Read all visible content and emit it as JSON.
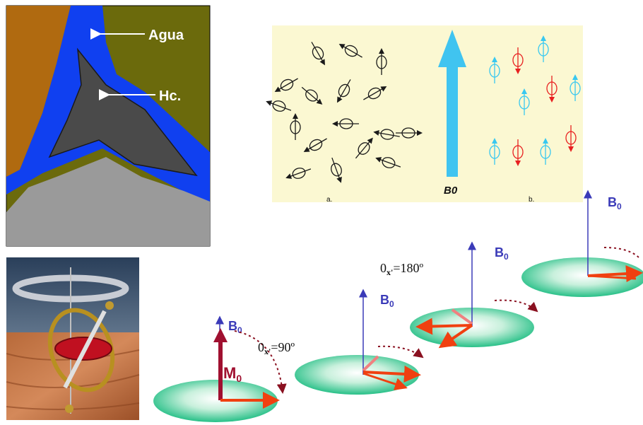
{
  "pore_panel": {
    "water_label": "Agua",
    "hydrocarbon_label": "Hc.",
    "colors": {
      "matrix_left": "#b06a10",
      "matrix_right": "#6b6a0c",
      "water": "#1040f0",
      "hydrocarbon": "#4a4a4a",
      "rock": "#9a9a9a"
    }
  },
  "spin_panel": {
    "label_a": "a.",
    "label_b": "b.",
    "field_label": "B0",
    "colors": {
      "background": "#fbf8d2",
      "field_arrow": "#40c4f0",
      "spin_up": "#38c8f0",
      "spin_down": "#e82020"
    }
  },
  "precession": {
    "b0_subscript": "0",
    "b0_letter": "B",
    "m0_letter": "M",
    "m0_subscript": "0",
    "angle_90": {
      "prefix": "0",
      "sub": "x'",
      "text": "=90º"
    },
    "angle_180": {
      "prefix": "0",
      "sub": "x'",
      "text": "=180º"
    },
    "colors": {
      "disc": "#30c890",
      "b0": "#3a3ab8",
      "m0": "#a01030",
      "vector": "#f04010"
    }
  },
  "gyroscope": {
    "icon": "gyroscope-photo"
  }
}
